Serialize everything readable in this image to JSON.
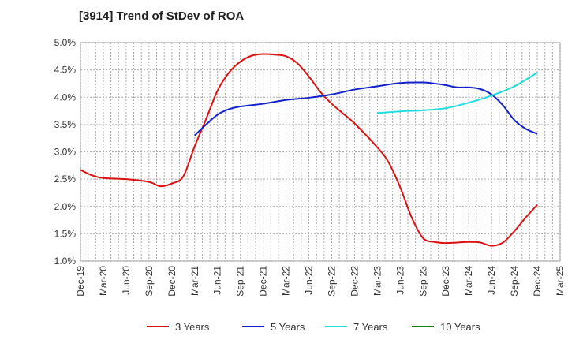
{
  "chart_data": {
    "type": "line",
    "title": "[3914]  Trend of StDev of ROA",
    "xlabel": "",
    "ylabel": "",
    "x_tick_labels": [
      "Dec-19",
      "Mar-20",
      "Jun-20",
      "Sep-20",
      "Dec-20",
      "Mar-21",
      "Jun-21",
      "Sep-21",
      "Dec-21",
      "Mar-22",
      "Jun-22",
      "Sep-22",
      "Dec-22",
      "Mar-23",
      "Jun-23",
      "Sep-23",
      "Dec-23",
      "Mar-24",
      "Jun-24",
      "Sep-24",
      "Dec-24",
      "Mar-25"
    ],
    "y_tick_labels": [
      "1.0%",
      "1.5%",
      "2.0%",
      "2.5%",
      "3.0%",
      "3.5%",
      "4.0%",
      "4.5%",
      "5.0%"
    ],
    "ylim": [
      1.0,
      5.0
    ],
    "x_unit": "quarter index (0 = Dec-19)",
    "xlim": [
      0,
      21
    ],
    "grid": true,
    "legend_position": "bottom",
    "series": [
      {
        "name": "3 Years",
        "color": "#dd1111",
        "x": [
          0,
          0.5,
          1,
          2,
          3,
          3.5,
          4,
          4.5,
          5,
          5.5,
          6,
          6.5,
          7,
          7.5,
          8,
          8.5,
          9,
          9.5,
          10,
          10.5,
          11,
          11.5,
          12,
          13,
          13.5,
          14,
          14.5,
          15,
          15.5,
          16,
          16.5,
          17,
          17.5,
          18,
          18.5,
          19,
          19.5,
          20
        ],
        "values": [
          2.67,
          2.57,
          2.52,
          2.5,
          2.45,
          2.37,
          2.42,
          2.55,
          3.1,
          3.6,
          4.12,
          4.45,
          4.65,
          4.76,
          4.79,
          4.78,
          4.75,
          4.62,
          4.38,
          4.1,
          3.88,
          3.7,
          3.52,
          3.08,
          2.8,
          2.35,
          1.8,
          1.42,
          1.35,
          1.33,
          1.34,
          1.35,
          1.34,
          1.28,
          1.34,
          1.55,
          1.8,
          2.03
        ]
      },
      {
        "name": "5 Years",
        "color": "#1122cc",
        "x": [
          5,
          5.5,
          6,
          6.5,
          7,
          8,
          9,
          10,
          11,
          12,
          13,
          14,
          15,
          15.5,
          16,
          16.5,
          17,
          17.5,
          18,
          18.5,
          19,
          19.5,
          20
        ],
        "values": [
          3.3,
          3.5,
          3.68,
          3.78,
          3.83,
          3.88,
          3.95,
          3.99,
          4.05,
          4.14,
          4.2,
          4.26,
          4.27,
          4.25,
          4.22,
          4.18,
          4.18,
          4.15,
          4.05,
          3.85,
          3.58,
          3.42,
          3.33
        ]
      },
      {
        "name": "7 Years",
        "color": "#22dddd",
        "x": [
          13,
          14,
          15,
          16,
          17,
          18,
          19,
          20
        ],
        "values": [
          3.71,
          3.74,
          3.76,
          3.8,
          3.9,
          4.03,
          4.2,
          4.45
        ]
      },
      {
        "name": "10 Years",
        "color": "#118811",
        "x": [],
        "values": []
      }
    ]
  }
}
